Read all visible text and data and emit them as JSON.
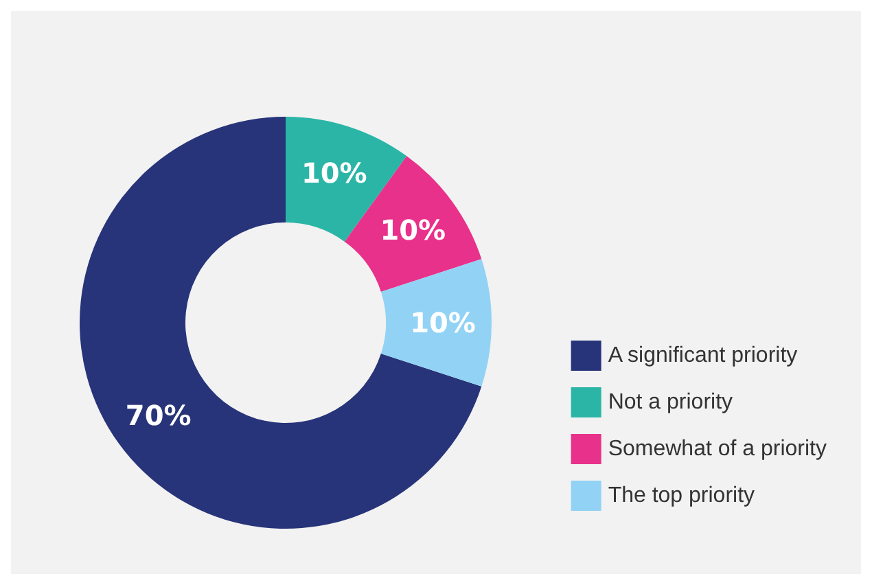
{
  "chart_data": {
    "type": "donut",
    "categories": [
      "A significant priority",
      "Not a priority",
      "Somewhat of a priority",
      "The top priority"
    ],
    "values": [
      70,
      10,
      10,
      10
    ],
    "colors": [
      "#283479",
      "#2bb5a6",
      "#e8318a",
      "#92d3f5"
    ],
    "value_labels": [
      "70%",
      "10%",
      "10%",
      "10%"
    ],
    "legend": "right"
  }
}
